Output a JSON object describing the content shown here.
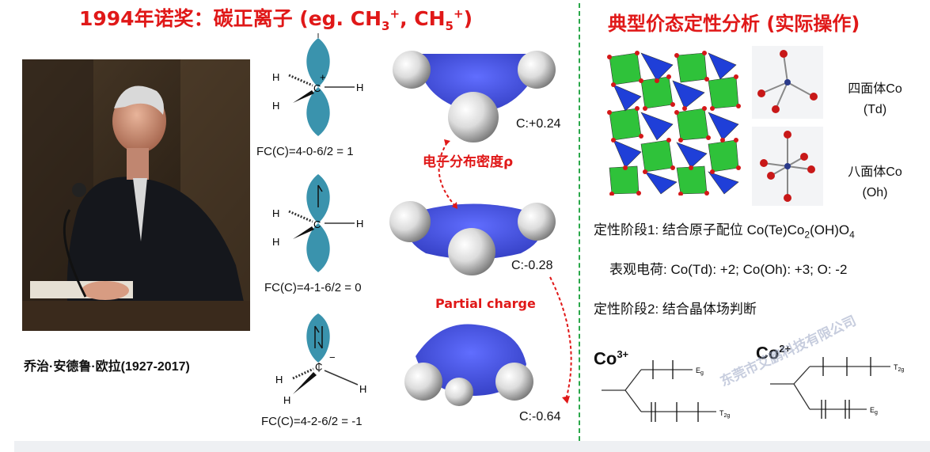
{
  "left_title": {
    "main": "1994年诺奖：碳正离子 (eg. CH",
    "s1": "3",
    "p1": "+",
    "mid": ", CH",
    "s2": "5",
    "p2": "+",
    "end": ")"
  },
  "right_title": "典型价态定性分析 (实际操作)",
  "portrait_caption": "乔治·安德鲁·欧拉(1927-2017)",
  "formal_charges": [
    "FC(C)=4-0-6/2 = 1",
    "FC(C)=4-1-6/2 = 0",
    "FC(C)=4-2-6/2 = -1"
  ],
  "atom_labels": {
    "carbon": "C",
    "hydrogen": "H",
    "plus": "+",
    "minus": "−"
  },
  "charges": [
    "C:+0.24",
    "C:-0.28",
    "C:-0.64"
  ],
  "density_label": "电子分布密度ρ",
  "partial_label": "Partial charge",
  "tetra_label": [
    "四面体Co",
    "(Td)"
  ],
  "octa_label": [
    "八面体Co",
    "(Oh)"
  ],
  "stage1": {
    "prefix": "定性阶段1:  结合原子配位 Co(Te)Co",
    "s1": "2",
    "mid": "(OH)O",
    "s2": "4"
  },
  "apparent_charge": "表观电荷: Co(Td): +2; Co(Oh): +3; O: -2",
  "stage2": "定性阶段2:  结合晶体场判断",
  "co3": {
    "base": "Co",
    "sup": "3+"
  },
  "co2": {
    "base": "Co",
    "sup": "2+"
  },
  "levels": {
    "eg": "E",
    "eg_sub": "g",
    "t2g": "T",
    "t2g_sub": "2g"
  },
  "watermark": "东莞市艾鹏科技有限公司",
  "colors": {
    "title_red": "#e01818",
    "divider_green": "#2aa84a",
    "orbital_teal": "#3a93ad",
    "density_blue": "#2a3ee0",
    "octa_green": "#2fc23a",
    "oxygen_red": "#d41818"
  }
}
